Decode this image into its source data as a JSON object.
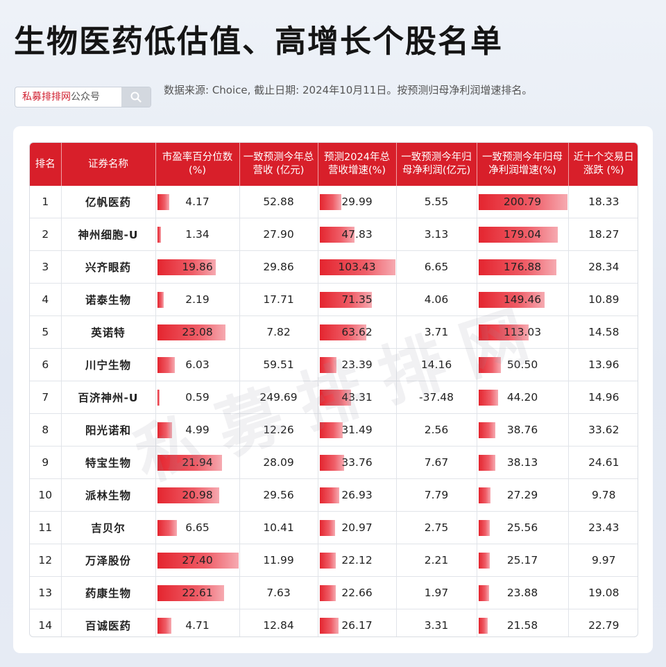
{
  "page": {
    "title": "生物医药低估值、高增长个股名单",
    "search_brand": "私募排排网",
    "search_suffix": "公众号",
    "source_text": "数据来源: Choice, 截止日期: 2024年10月11日。按预测归母净利润增速排名。",
    "watermark": "私募排排网"
  },
  "table": {
    "columns": [
      "排名",
      "证券名称",
      "市盈率百分位数(%)",
      "一致预测今年总营收 (亿元)",
      "预测2024年总营收增速(%)",
      "一致预测今年归母净利润(亿元)",
      "一致预测今年归母净利润增速(%)",
      "近十个交易日涨跌 (%)"
    ],
    "rows": [
      {
        "rank": "1",
        "name": "亿帆医药",
        "pe": "4.17",
        "revenue": "52.88",
        "rev_growth": "29.99",
        "profit": "5.55",
        "profit_growth": "200.79",
        "change10d": "18.33"
      },
      {
        "rank": "2",
        "name": "神州细胞-U",
        "pe": "1.34",
        "revenue": "27.90",
        "rev_growth": "47.83",
        "profit": "3.13",
        "profit_growth": "179.04",
        "change10d": "18.27"
      },
      {
        "rank": "3",
        "name": "兴齐眼药",
        "pe": "19.86",
        "revenue": "29.86",
        "rev_growth": "103.43",
        "profit": "6.65",
        "profit_growth": "176.88",
        "change10d": "28.34"
      },
      {
        "rank": "4",
        "name": "诺泰生物",
        "pe": "2.19",
        "revenue": "17.71",
        "rev_growth": "71.35",
        "profit": "4.06",
        "profit_growth": "149.46",
        "change10d": "10.89"
      },
      {
        "rank": "5",
        "name": "英诺特",
        "pe": "23.08",
        "revenue": "7.82",
        "rev_growth": "63.62",
        "profit": "3.71",
        "profit_growth": "113.03",
        "change10d": "14.58"
      },
      {
        "rank": "6",
        "name": "川宁生物",
        "pe": "6.03",
        "revenue": "59.51",
        "rev_growth": "23.39",
        "profit": "14.16",
        "profit_growth": "50.50",
        "change10d": "13.96"
      },
      {
        "rank": "7",
        "name": "百济神州-U",
        "pe": "0.59",
        "revenue": "249.69",
        "rev_growth": "43.31",
        "profit": "-37.48",
        "profit_growth": "44.20",
        "change10d": "14.96"
      },
      {
        "rank": "8",
        "name": "阳光诺和",
        "pe": "4.99",
        "revenue": "12.26",
        "rev_growth": "31.49",
        "profit": "2.56",
        "profit_growth": "38.76",
        "change10d": "33.62"
      },
      {
        "rank": "9",
        "name": "特宝生物",
        "pe": "21.94",
        "revenue": "28.09",
        "rev_growth": "33.76",
        "profit": "7.67",
        "profit_growth": "38.13",
        "change10d": "24.61"
      },
      {
        "rank": "10",
        "name": "派林生物",
        "pe": "20.98",
        "revenue": "29.56",
        "rev_growth": "26.93",
        "profit": "7.79",
        "profit_growth": "27.29",
        "change10d": "9.78"
      },
      {
        "rank": "11",
        "name": "吉贝尔",
        "pe": "6.65",
        "revenue": "10.41",
        "rev_growth": "20.97",
        "profit": "2.75",
        "profit_growth": "25.56",
        "change10d": "23.43"
      },
      {
        "rank": "12",
        "name": "万泽股份",
        "pe": "27.40",
        "revenue": "11.99",
        "rev_growth": "22.12",
        "profit": "2.21",
        "profit_growth": "25.17",
        "change10d": "9.97"
      },
      {
        "rank": "13",
        "name": "药康生物",
        "pe": "22.61",
        "revenue": "7.63",
        "rev_growth": "22.66",
        "profit": "1.97",
        "profit_growth": "23.88",
        "change10d": "19.08"
      },
      {
        "rank": "14",
        "name": "百诚医药",
        "pe": "4.71",
        "revenue": "12.84",
        "rev_growth": "26.17",
        "profit": "3.31",
        "profit_growth": "21.58",
        "change10d": "22.79"
      }
    ]
  },
  "colors": {
    "header_bg": "#d81f2a",
    "bar": "#e4252f"
  }
}
